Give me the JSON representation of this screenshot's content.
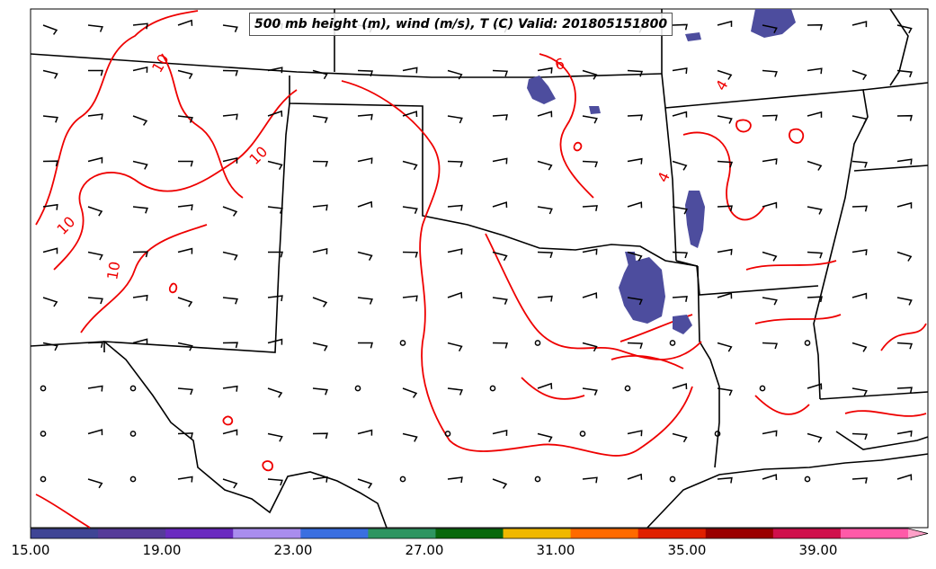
{
  "map": {
    "title": "500 mb height (m), wind (m/s), T (C) Valid: 201805151800",
    "contour_labels": [
      "10",
      "10",
      "10",
      "10",
      "6",
      "4",
      "4"
    ],
    "colors": {
      "states": "#000000",
      "temperature_contour": "#ee0000",
      "fill_blob": "#4d4d9e",
      "barbs": "#000000"
    }
  },
  "colorbar": {
    "ticks": [
      "15.00",
      "19.00",
      "23.00",
      "27.00",
      "31.00",
      "35.00",
      "39.00"
    ],
    "colors": [
      "#3f4595",
      "#553b99",
      "#6a2bc0",
      "#a98dee",
      "#3a6fe0",
      "#2e9561",
      "#08680c",
      "#f0b800",
      "#ff6a00",
      "#e02000",
      "#9a0000",
      "#d0104c",
      "#ff5aa8",
      "#ffa0c8"
    ]
  }
}
